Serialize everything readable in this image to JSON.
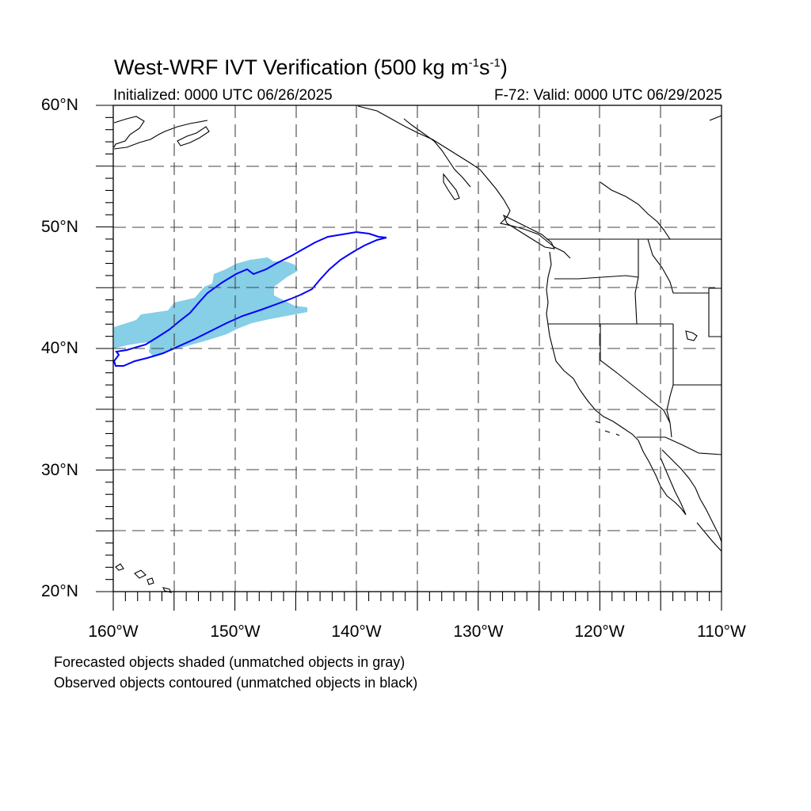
{
  "title": {
    "main": "West-WRF IVT Verification (500 kg m",
    "exp1": "-1",
    "s": "s",
    "exp2": "-1",
    "close": ")"
  },
  "initialized": "Initialized: 0000 UTC 06/26/2025",
  "valid": "F-72: Valid: 0000 UTC 06/29/2025",
  "lat_labels": [
    "60°N",
    "50°N",
    "40°N",
    "30°N",
    "20°N"
  ],
  "lon_labels": [
    "160°W",
    "150°W",
    "140°W",
    "130°W",
    "120°W",
    "110°W"
  ],
  "notes": [
    "Forecasted objects shaded (unmatched objects in gray)",
    "Observed objects contoured (unmatched objects in black)"
  ],
  "map": {
    "lon_range": [
      -160,
      -110
    ],
    "lat_range": [
      20,
      60
    ],
    "grid_interval_deg": 5,
    "forecast_object_color": "#87CEE7",
    "observed_contour_color": "#0000FF",
    "coastline_color": "#000000",
    "gridline_style": "dashed"
  }
}
